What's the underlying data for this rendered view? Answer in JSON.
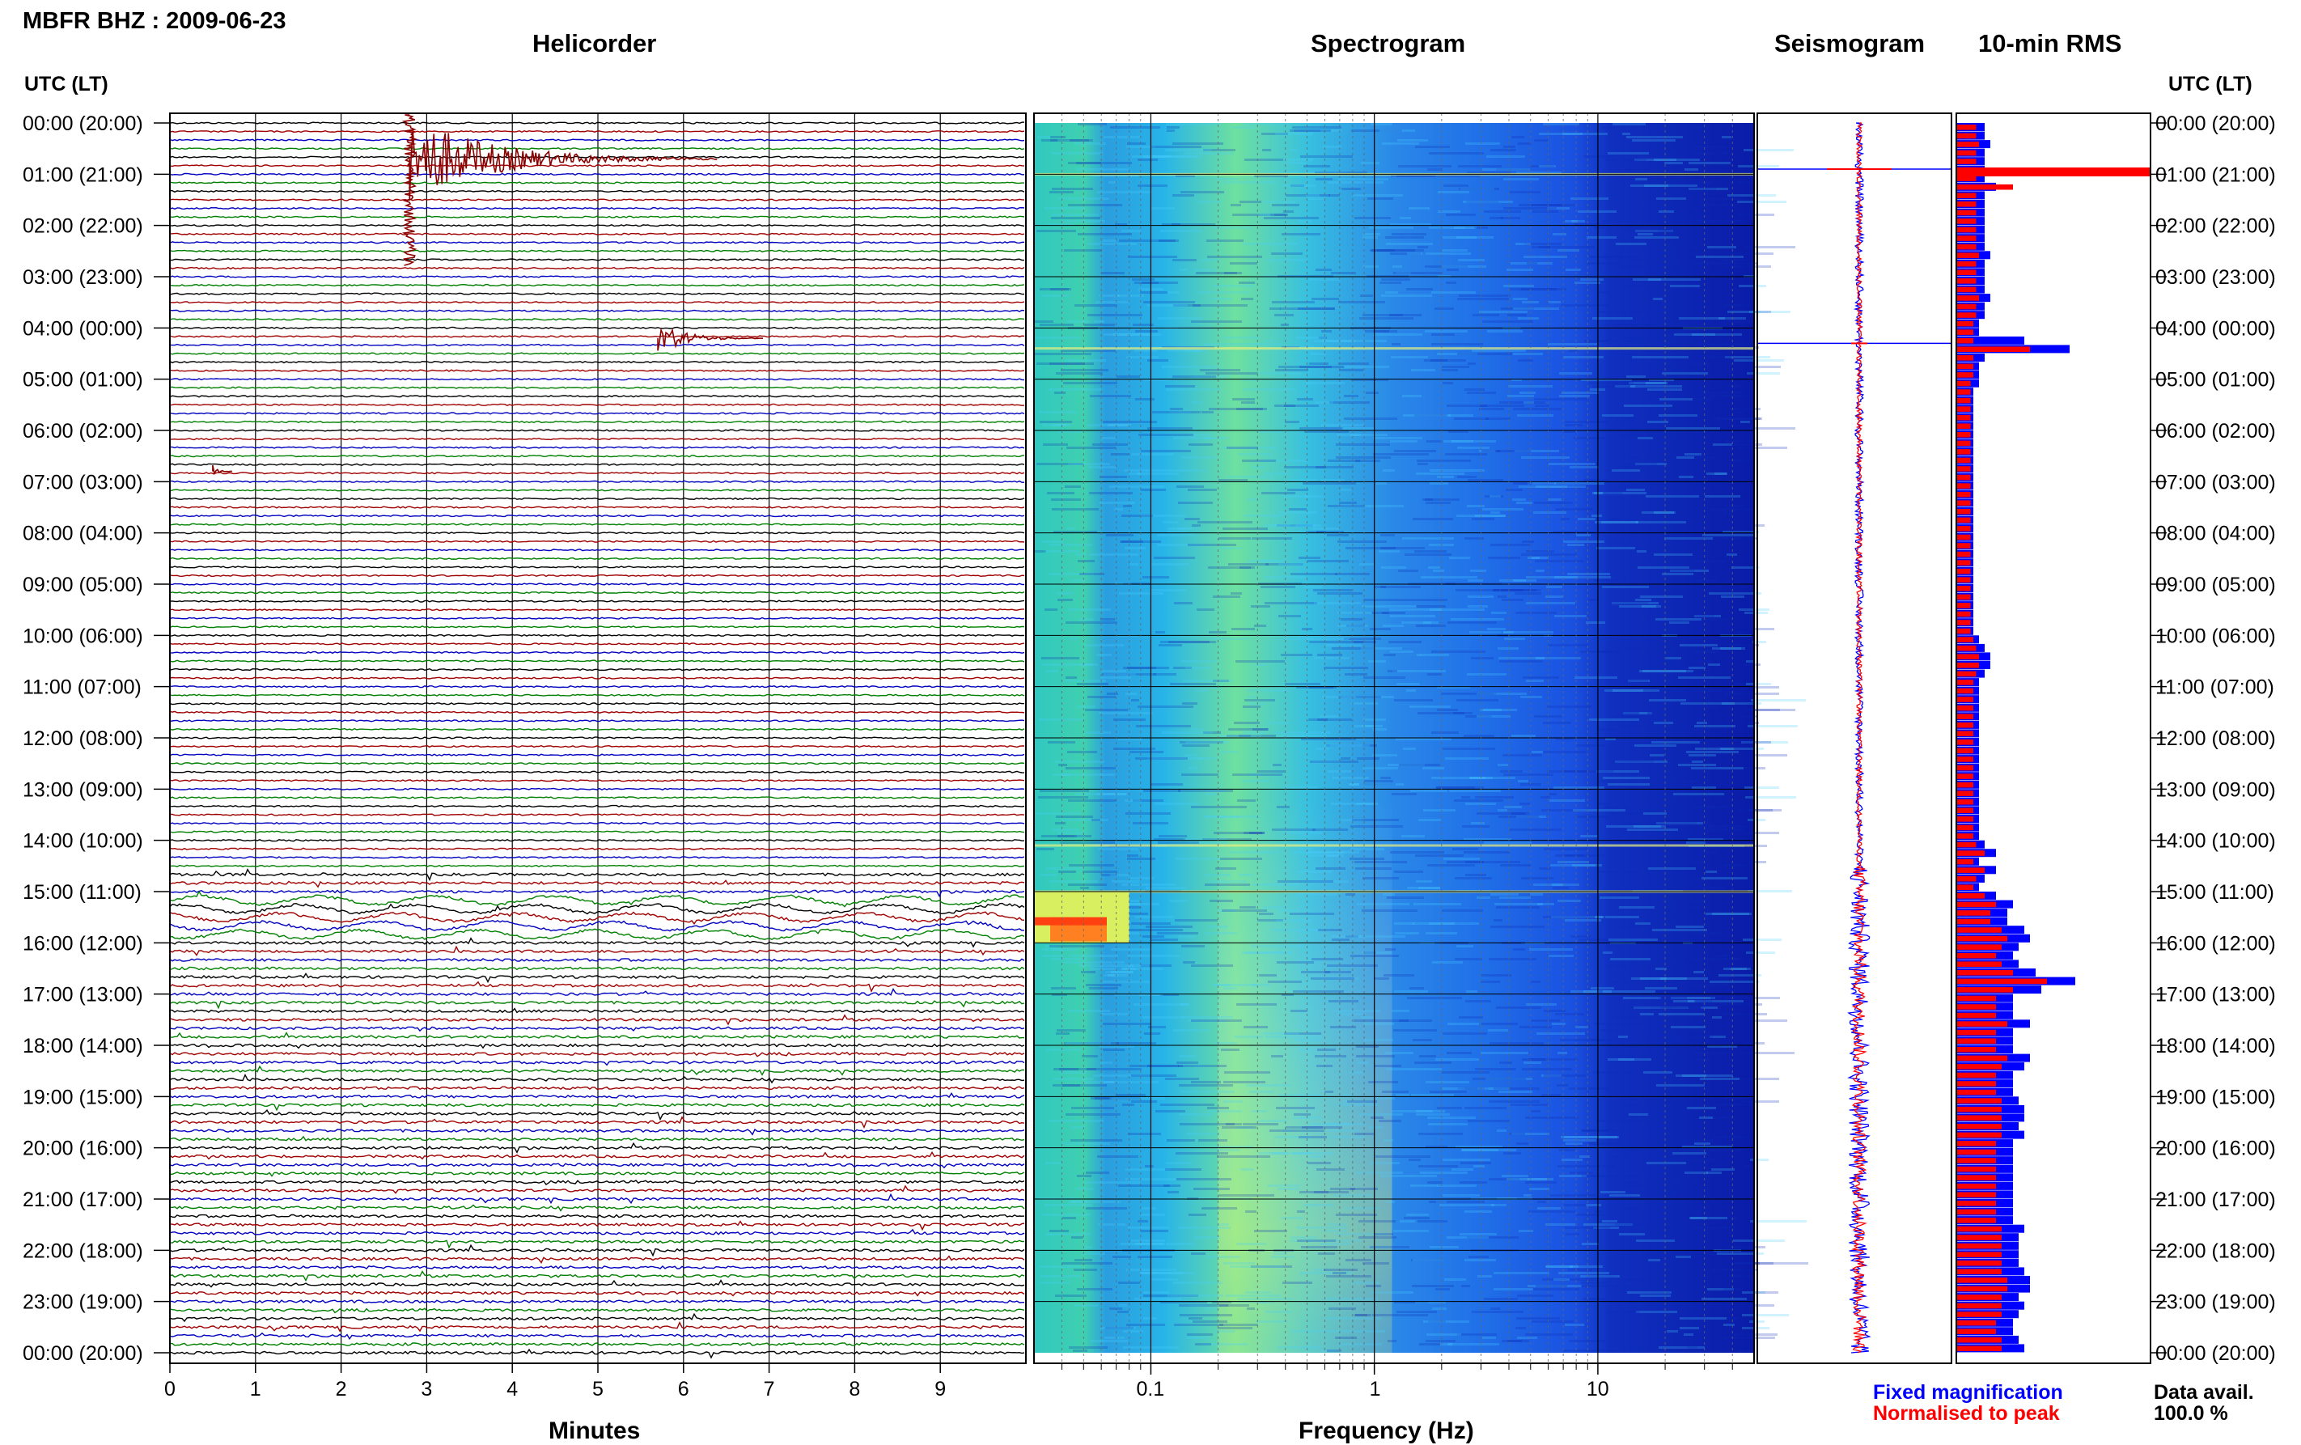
{
  "header": {
    "title": "MBFR BHZ : 2009-06-23"
  },
  "panels": {
    "helicorder": "Helicorder",
    "spectrogram": "Spectrogram",
    "seismogram": "Seismogram",
    "rms": "10-min RMS"
  },
  "axes": {
    "time_label_left": "UTC (LT)",
    "time_label_right": "UTC (LT)",
    "minutes_label": "Minutes",
    "frequency_label": "Frequency (Hz)"
  },
  "legend": {
    "fixed": "Fixed magnification",
    "normalised": "Normalised to peak",
    "avail_label": "Data avail.",
    "avail_value": "100.0 %"
  },
  "colors": {
    "trace_cycle": [
      "#000000",
      "#a00000",
      "#0000c0",
      "#008000"
    ],
    "event_trace": "#8b0000",
    "rms_fixed": "#0000ff",
    "rms_normalised": "#ff0000",
    "seis_fixed": "#0000ff",
    "seis_normalised": "#ff0000"
  },
  "chart_data": [
    {
      "type": "line",
      "name": "helicorder",
      "xlabel": "Minutes",
      "x_ticks": [
        0,
        1,
        2,
        3,
        4,
        5,
        6,
        7,
        8,
        9
      ],
      "xlim": [
        0,
        10
      ],
      "rows_per_hour": 6,
      "y_ticks": [
        "00:00 (20:00)",
        "01:00 (21:00)",
        "02:00 (22:00)",
        "03:00 (23:00)",
        "04:00 (00:00)",
        "05:00 (01:00)",
        "06:00 (02:00)",
        "07:00 (03:00)",
        "08:00 (04:00)",
        "09:00 (05:00)",
        "10:00 (06:00)",
        "11:00 (07:00)",
        "12:00 (08:00)",
        "13:00 (09:00)",
        "14:00 (10:00)",
        "15:00 (11:00)",
        "16:00 (12:00)",
        "17:00 (13:00)",
        "18:00 (14:00)",
        "19:00 (15:00)",
        "20:00 (16:00)",
        "21:00 (17:00)",
        "22:00 (18:00)",
        "23:00 (19:00)",
        "00:00 (20:00)"
      ],
      "events": [
        {
          "hour": 0.7,
          "minute": 2.8,
          "amplitude": "large"
        },
        {
          "hour": 4.2,
          "minute": 5.7,
          "amplitude": "medium"
        },
        {
          "hour": 6.8,
          "minute": 0.5,
          "amplitude": "small"
        }
      ],
      "microseism_hours": [
        15.1,
        15.9
      ]
    },
    {
      "type": "heatmap",
      "name": "spectrogram",
      "xlabel": "Frequency (Hz)",
      "x_scale": "log",
      "x_ticks": [
        0.1,
        1,
        10
      ],
      "xlim": [
        0.03,
        50
      ],
      "colormap": "jet",
      "spectral_peak_hz": 0.4,
      "lines_hours": [
        1,
        4.4,
        14.1,
        15.0
      ],
      "low_freq_burst_hours": [
        15.5,
        16.0
      ]
    },
    {
      "type": "line",
      "name": "seismogram",
      "series": [
        {
          "name": "Fixed magnification",
          "color": "#0000ff"
        },
        {
          "name": "Normalised to peak",
          "color": "#ff0000"
        }
      ],
      "spikes_hours": [
        0.9,
        4.3
      ]
    },
    {
      "type": "bar",
      "name": "10-min RMS",
      "series": [
        {
          "name": "Fixed magnification",
          "values": [
            0.5,
            0.5,
            0.6,
            0.5,
            0.5,
            0.5,
            0.5,
            0.7,
            0.5,
            0.5,
            0.5,
            0.5,
            0.5,
            0.5,
            0.5,
            0.6,
            0.5,
            0.5,
            0.5,
            0.5,
            0.6,
            0.5,
            0.5,
            0.4,
            0.4,
            1.2,
            2.0,
            0.5,
            0.4,
            0.4,
            0.4,
            0.3,
            0.3,
            0.3,
            0.3,
            0.3,
            0.3,
            0.3,
            0.3,
            0.3,
            0.3,
            0.3,
            0.3,
            0.3,
            0.3,
            0.3,
            0.3,
            0.3,
            0.3,
            0.3,
            0.3,
            0.3,
            0.3,
            0.3,
            0.3,
            0.3,
            0.3,
            0.3,
            0.3,
            0.3,
            0.4,
            0.5,
            0.6,
            0.6,
            0.5,
            0.4,
            0.4,
            0.4,
            0.4,
            0.4,
            0.4,
            0.4,
            0.4,
            0.4,
            0.4,
            0.4,
            0.4,
            0.4,
            0.4,
            0.4,
            0.4,
            0.4,
            0.4,
            0.4,
            0.5,
            0.7,
            0.4,
            0.7,
            0.5,
            0.4,
            0.7,
            1.0,
            0.9,
            0.9,
            1.2,
            1.3,
            1.1,
            1.0,
            1.1,
            1.4,
            2.1,
            1.5,
            1.0,
            1.0,
            1.0,
            1.3,
            1.0,
            1.0,
            1.0,
            1.3,
            1.2,
            1.0,
            1.0,
            1.0,
            1.1,
            1.2,
            1.2,
            1.1,
            1.2,
            1.0,
            1.0,
            1.0,
            1.0,
            1.0,
            1.0,
            1.0,
            1.0,
            1.0,
            1.0,
            1.2,
            1.1,
            1.1,
            1.1,
            1.1,
            1.2,
            1.3,
            1.3,
            1.1,
            1.2,
            1.1,
            1.0,
            1.0,
            1.1,
            1.2
          ]
        },
        {
          "name": "Normalised to peak",
          "values": [
            0.35,
            0.35,
            0.4,
            0.35,
            0.35,
            0.35,
            0.35,
            1.0,
            0.35,
            0.35,
            0.35,
            0.35,
            0.35,
            0.35,
            0.35,
            0.4,
            0.35,
            0.35,
            0.35,
            0.35,
            0.4,
            0.35,
            0.35,
            0.3,
            0.3,
            0.3,
            1.3,
            0.3,
            0.3,
            0.3,
            0.25,
            0.25,
            0.25,
            0.25,
            0.25,
            0.25,
            0.25,
            0.25,
            0.25,
            0.25,
            0.25,
            0.25,
            0.25,
            0.25,
            0.25,
            0.25,
            0.25,
            0.25,
            0.25,
            0.25,
            0.25,
            0.25,
            0.25,
            0.25,
            0.25,
            0.25,
            0.25,
            0.25,
            0.25,
            0.25,
            0.3,
            0.35,
            0.4,
            0.4,
            0.35,
            0.3,
            0.3,
            0.3,
            0.3,
            0.3,
            0.3,
            0.3,
            0.3,
            0.3,
            0.3,
            0.3,
            0.3,
            0.3,
            0.3,
            0.3,
            0.3,
            0.3,
            0.3,
            0.3,
            0.35,
            0.5,
            0.3,
            0.5,
            0.35,
            0.3,
            0.5,
            0.7,
            0.6,
            0.6,
            0.8,
            0.9,
            0.8,
            0.7,
            0.8,
            1.0,
            1.6,
            1.0,
            0.7,
            0.7,
            0.7,
            0.9,
            0.7,
            0.7,
            0.7,
            0.9,
            0.8,
            0.7,
            0.7,
            0.7,
            0.8,
            0.8,
            0.8,
            0.8,
            0.8,
            0.7,
            0.7,
            0.7,
            0.7,
            0.7,
            0.7,
            0.7,
            0.7,
            0.7,
            0.7,
            0.8,
            0.8,
            0.8,
            0.8,
            0.8,
            0.8,
            0.9,
            0.9,
            0.8,
            0.8,
            0.8,
            0.7,
            0.7,
            0.8,
            0.8
          ]
        }
      ]
    }
  ]
}
